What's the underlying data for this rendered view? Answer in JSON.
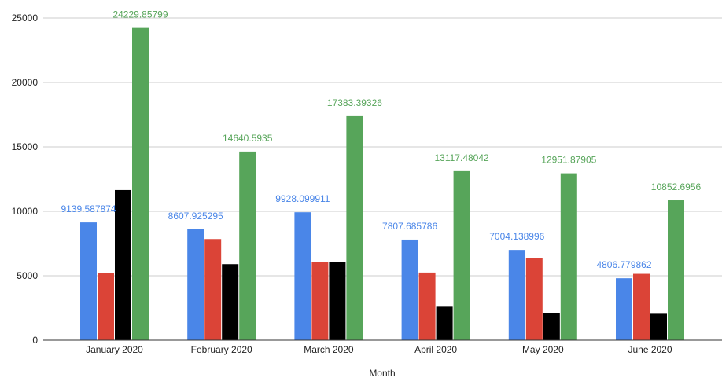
{
  "chart_data": {
    "type": "bar",
    "title": "",
    "xlabel": "Month",
    "ylabel": "",
    "ylim": [
      0,
      25000
    ],
    "yticks": [
      0,
      5000,
      10000,
      15000,
      20000,
      25000
    ],
    "grid": true,
    "categories": [
      "January 2020",
      "February 2020",
      "March 2020",
      "April 2020",
      "May 2020",
      "June 2020"
    ],
    "series": [
      {
        "color": "#4a86e8",
        "values": [
          9139.587874,
          8607.925295,
          9928.099911,
          7807.685786,
          7004.138996,
          4806.779862
        ],
        "labels": [
          "9139.587874",
          "8607.925295",
          "9928.099911",
          "7807.685786",
          "7004.138996",
          "4806.779862"
        ]
      },
      {
        "color": "#db4437",
        "values": [
          5200,
          7850,
          6050,
          5250,
          6400,
          5150
        ]
      },
      {
        "color": "#000000",
        "values": [
          11650,
          5900,
          6050,
          2600,
          2100,
          2050
        ]
      },
      {
        "color": "#57a55a",
        "values": [
          24229.85799,
          14640.5935,
          17383.39326,
          13117.48042,
          12951.87905,
          10852.6956
        ],
        "labels": [
          "24229.85799",
          "14640.5935",
          "17383.39326",
          "13117.48042",
          "12951.87905",
          "10852.6956"
        ]
      }
    ]
  }
}
